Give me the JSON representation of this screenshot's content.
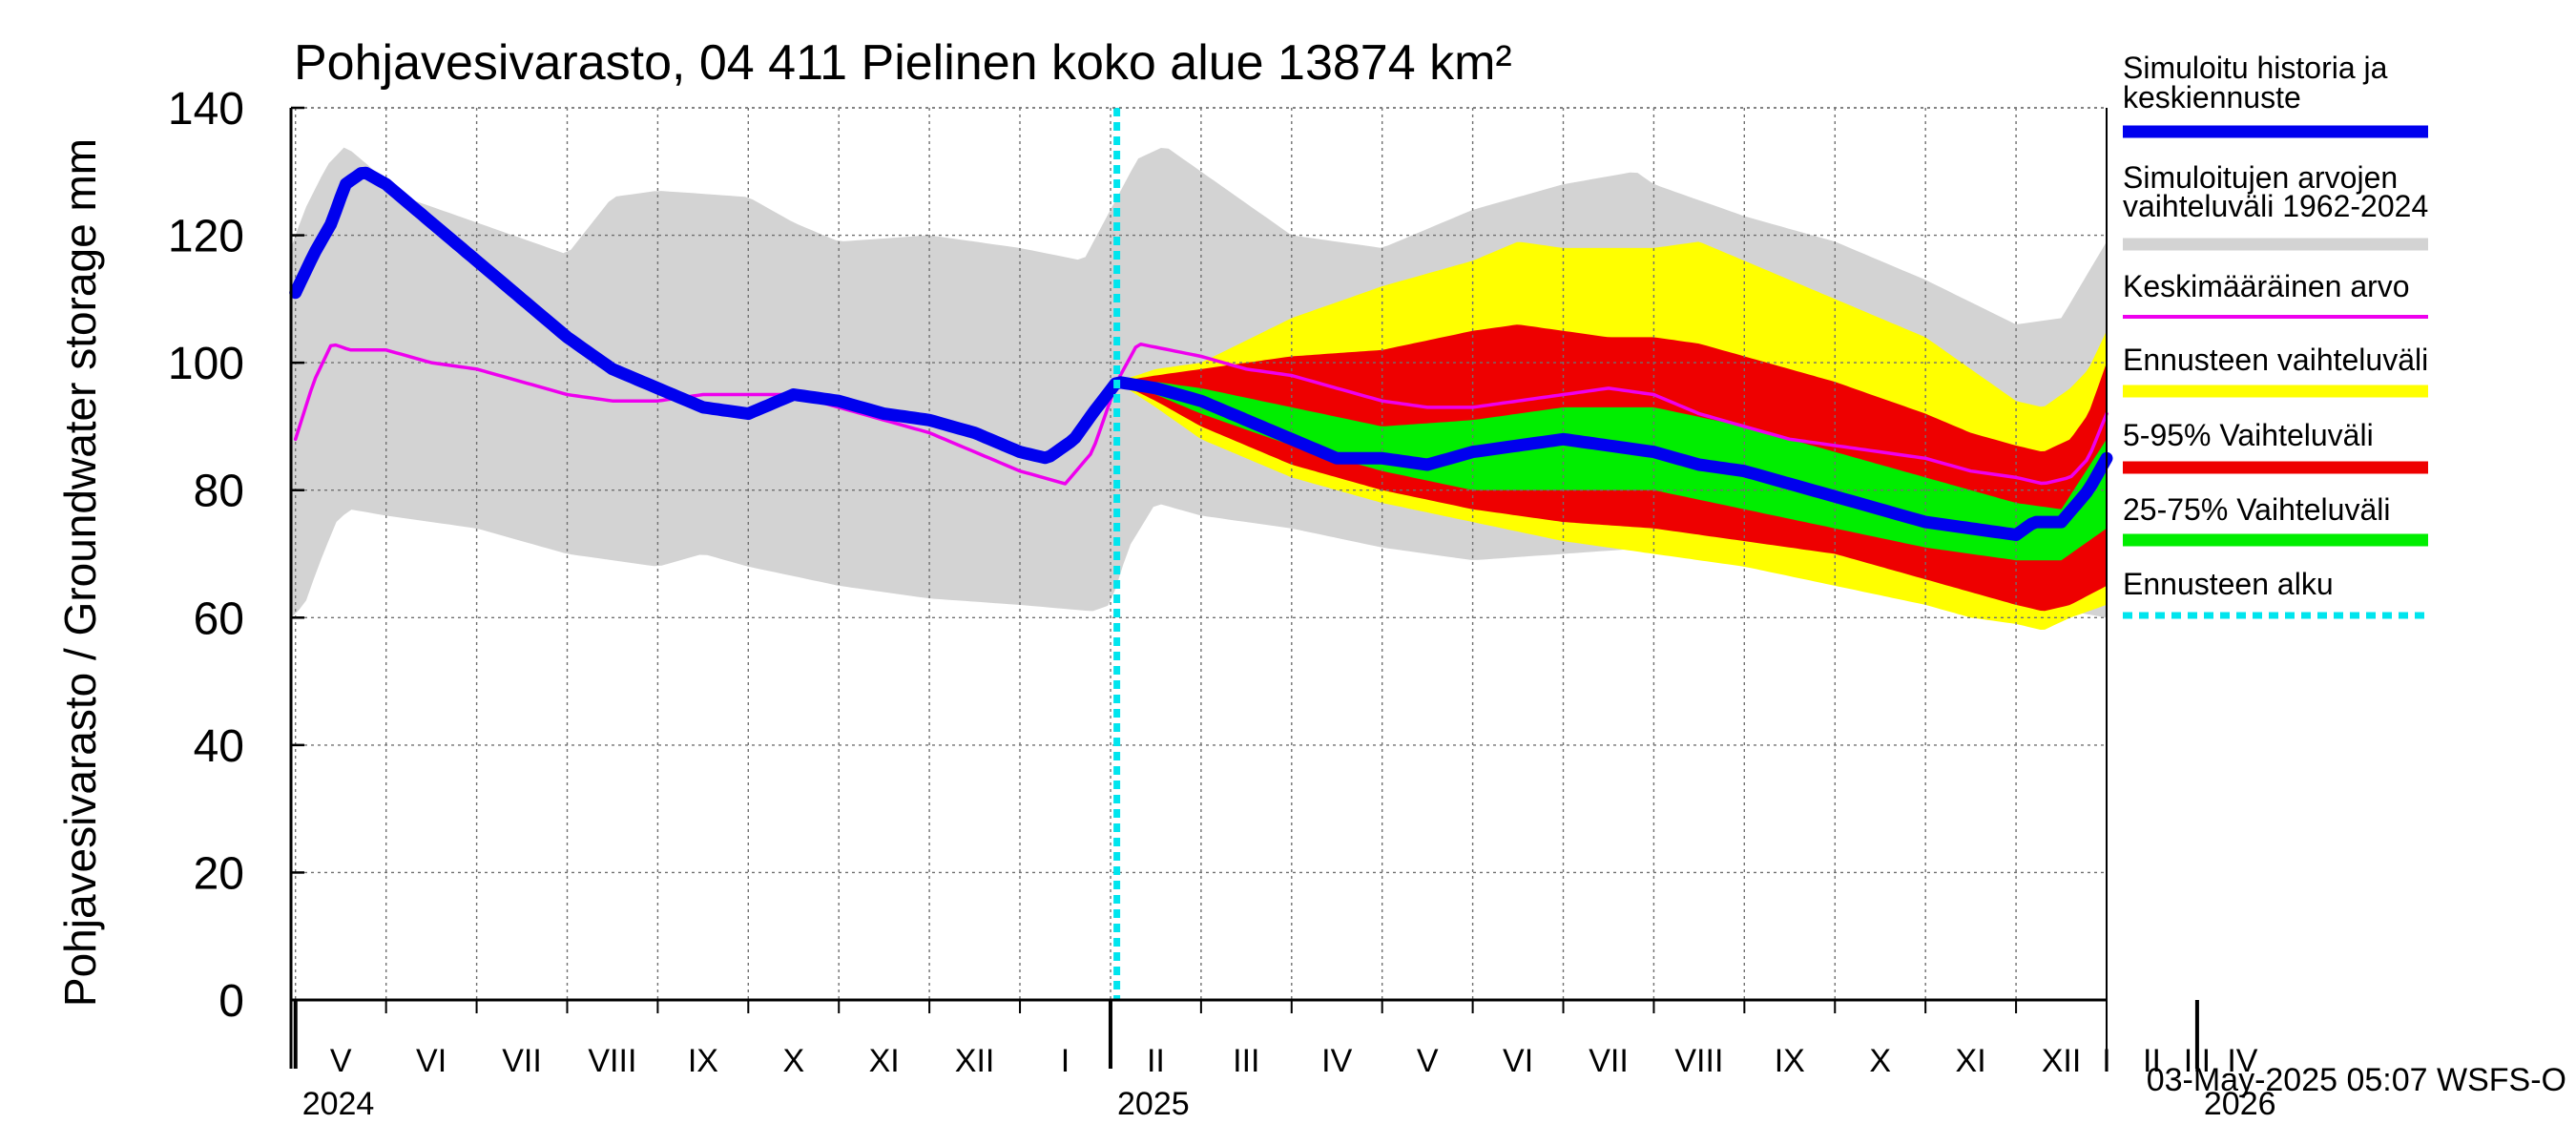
{
  "chart_data": {
    "type": "area",
    "title": "Pohjavesivarasto, 04 411 Pielinen koko alue 13874 km²",
    "ylabel": "Pohjavesivarasto / Groundwater storage   mm",
    "ylim": [
      0,
      140
    ],
    "yticks": [
      "0",
      "20",
      "40",
      "60",
      "80",
      "100",
      "120",
      "140"
    ],
    "ytick_values": [
      0,
      20,
      40,
      60,
      80,
      100,
      120,
      140
    ],
    "x_unit": "months since 2024-04-01",
    "xlim": [
      3.95,
      24.0
    ],
    "months": [
      "V",
      "VI",
      "VII",
      "VIII",
      "IX",
      "X",
      "XI",
      "XII",
      "I",
      "II",
      "III",
      "IV",
      "V",
      "VI",
      "VII",
      "VIII",
      "IX",
      "X",
      "XI",
      "XII",
      "I",
      "II",
      "III",
      "IV"
    ],
    "years": [
      {
        "label": "2024",
        "at": 0
      },
      {
        "label": "2025",
        "at": 9
      },
      {
        "label": "2026",
        "at": 21
      }
    ],
    "forecast_start": 13.07,
    "timestamp": "03-May-2025 05:07 WSFS-O",
    "legend": [
      {
        "label_lines": [
          "Simuloitu historia ja",
          "keskiennuste"
        ],
        "color": "#0000ee",
        "style": "line"
      },
      {
        "label_lines": [
          "Simuloitujen arvojen",
          "vaihteluväli 1962-2024"
        ],
        "color": "#d3d3d3",
        "style": "band"
      },
      {
        "label_lines": [
          "Keskimääräinen arvo"
        ],
        "color": "#ee00ee",
        "style": "line"
      },
      {
        "label_lines": [
          "Ennusteen vaihteluväli"
        ],
        "color": "#ffff00",
        "style": "band"
      },
      {
        "label_lines": [
          "5-95% Vaihteluväli"
        ],
        "color": "#ee0000",
        "style": "band"
      },
      {
        "label_lines": [
          "25-75% Vaihteluväli"
        ],
        "color": "#00ee00",
        "style": "band"
      },
      {
        "label_lines": [
          "Ennusteen alku"
        ],
        "color": "#00e5ee",
        "style": "dotted"
      }
    ],
    "series": [
      {
        "name": "Simuloitujen arvojen vaihteluväli 1962-2024 (upper)",
        "color": "#d3d3d3",
        "x": [
          3.95,
          4.1,
          4.35,
          4.55,
          4.8,
          5.2,
          6,
          7,
          7.5,
          8,
          9,
          9.5,
          10,
          11,
          12,
          12.7,
          13.0,
          13.3,
          13.6,
          14,
          15,
          16,
          17,
          18,
          18.8,
          19,
          20,
          21,
          22,
          23,
          23.5,
          24.0
        ],
        "values": [
          118,
          124,
          131,
          134,
          131,
          126,
          122,
          117,
          126,
          127,
          126,
          122,
          119,
          120,
          118,
          116,
          124,
          132,
          134,
          130,
          120,
          118,
          124,
          128,
          130,
          128,
          123,
          119,
          113,
          106,
          107,
          119
        ]
      },
      {
        "name": "Simuloitujen arvojen vaihteluväli 1962-2024 (lower)",
        "color": "#d3d3d3",
        "x": [
          3.95,
          4.1,
          4.25,
          4.45,
          4.6,
          5.0,
          6,
          7,
          8,
          8.5,
          9,
          10,
          11,
          12,
          12.8,
          13.0,
          13.2,
          13.5,
          14,
          15,
          16,
          17,
          18,
          19,
          20,
          21,
          22,
          23,
          23.6,
          24.0
        ],
        "values": [
          60,
          62,
          68,
          75,
          77,
          76,
          74,
          70,
          68,
          70,
          68,
          65,
          63,
          62,
          61,
          62,
          71,
          78,
          76,
          74,
          71,
          69,
          70,
          71,
          68,
          66,
          64,
          63,
          61,
          60
        ]
      },
      {
        "name": "Ennusteen vaihteluväli (upper)",
        "color": "#ffff00",
        "x": [
          13.07,
          13.5,
          14,
          15,
          16,
          17,
          17.5,
          18,
          19,
          19.5,
          20,
          21,
          22,
          22.5,
          23,
          23.3,
          23.6,
          23.8,
          24.0
        ],
        "values": [
          97,
          99,
          100,
          107,
          112,
          116,
          119,
          118,
          118,
          119,
          116,
          110,
          104,
          99,
          94,
          93,
          96,
          99,
          105
        ]
      },
      {
        "name": "Ennusteen vaihteluväli (lower)",
        "color": "#ffff00",
        "x": [
          13.07,
          13.5,
          14,
          15,
          16,
          17,
          18,
          19,
          20,
          21,
          22,
          22.5,
          23,
          23.3,
          23.6,
          24.0
        ],
        "values": [
          97,
          93,
          88,
          82,
          78,
          75,
          72,
          70,
          68,
          65,
          62,
          60,
          59,
          58,
          60,
          62
        ]
      },
      {
        "name": "5-95% Vaihteluväli (upper)",
        "color": "#ee0000",
        "x": [
          13.07,
          13.5,
          14,
          15,
          16,
          17,
          17.5,
          18,
          18.5,
          19,
          19.5,
          20,
          21,
          22,
          22.5,
          23,
          23.3,
          23.6,
          23.8,
          24.0
        ],
        "values": [
          97,
          98,
          99,
          101,
          102,
          105,
          106,
          105,
          104,
          104,
          103,
          101,
          97,
          92,
          89,
          87,
          86,
          88,
          92,
          100
        ]
      },
      {
        "name": "5-95% Vaihteluväli (lower)",
        "color": "#ee0000",
        "x": [
          13.07,
          13.5,
          14,
          15,
          16,
          17,
          18,
          19,
          20,
          21,
          22,
          22.5,
          23,
          23.3,
          23.6,
          24.0
        ],
        "values": [
          97,
          94,
          90,
          84,
          80,
          77,
          75,
          74,
          72,
          70,
          66,
          64,
          62,
          61,
          62,
          65
        ]
      },
      {
        "name": "25-75% Vaihteluväli (upper)",
        "color": "#00ee00",
        "x": [
          13.07,
          13.5,
          14,
          15,
          16,
          17,
          17.5,
          18,
          18.5,
          19,
          20,
          21,
          22,
          23,
          23.5,
          24.0
        ],
        "values": [
          97,
          97,
          96,
          93,
          90,
          91,
          92,
          93,
          93,
          93,
          90,
          86,
          82,
          78,
          77,
          88
        ]
      },
      {
        "name": "25-75% Vaihteluväli (lower)",
        "color": "#00ee00",
        "x": [
          13.07,
          13.5,
          14,
          15,
          16,
          17,
          18,
          19,
          20,
          21,
          22,
          23,
          23.5,
          24.0
        ],
        "values": [
          97,
          95,
          92,
          87,
          83,
          80,
          80,
          80,
          77,
          74,
          71,
          69,
          69,
          74
        ]
      },
      {
        "name": "Keskimääräinen arvo",
        "color": "#ee00ee",
        "x": [
          4.0,
          4.2,
          4.4,
          4.6,
          5.0,
          5.5,
          6.0,
          6.5,
          7.0,
          7.5,
          8.0,
          8.5,
          9.0,
          9.5,
          10.0,
          10.5,
          11.0,
          11.5,
          12.0,
          12.5,
          12.8,
          13.07,
          13.3,
          14.0,
          14.5,
          15.0,
          15.5,
          16.0,
          16.5,
          17.0,
          17.5,
          18.0,
          18.5,
          19.0,
          19.5,
          20.0,
          20.5,
          21.0,
          21.5,
          22.0,
          22.5,
          23.0,
          23.3,
          23.6,
          23.8,
          24.0
        ],
        "values": [
          88,
          97,
          103,
          102,
          102,
          100,
          99,
          97,
          95,
          94,
          94,
          95,
          95,
          95,
          93,
          91,
          89,
          86,
          83,
          81,
          86,
          97,
          103,
          101,
          99,
          98,
          96,
          94,
          93,
          93,
          94,
          95,
          96,
          95,
          92,
          90,
          88,
          87,
          86,
          85,
          83,
          82,
          81,
          82,
          85,
          92
        ]
      },
      {
        "name": "Simuloitu historia ja keskiennuste",
        "color": "#0000ee",
        "x": [
          4.0,
          4.2,
          4.4,
          4.55,
          4.75,
          5.0,
          5.5,
          6.0,
          6.5,
          7.0,
          7.5,
          8.0,
          8.5,
          9.0,
          9.5,
          10.0,
          10.5,
          11.0,
          11.5,
          12.0,
          12.3,
          12.6,
          12.8,
          13.07,
          13.5,
          14.0,
          14.5,
          15.0,
          15.5,
          16.0,
          16.5,
          17.0,
          17.5,
          18.0,
          18.5,
          19.0,
          19.5,
          20.0,
          20.5,
          21.0,
          21.5,
          22.0,
          22.5,
          23.0,
          23.2,
          23.5,
          23.8,
          24.0
        ],
        "values": [
          111,
          117,
          122,
          128,
          130,
          128,
          122,
          116,
          110,
          104,
          99,
          96,
          93,
          92,
          95,
          94,
          92,
          91,
          89,
          86,
          85,
          88,
          92,
          97,
          96,
          94,
          91,
          88,
          85,
          85,
          84,
          86,
          87,
          88,
          87,
          86,
          84,
          83,
          81,
          79,
          77,
          75,
          74,
          73,
          75,
          75,
          80,
          85
        ]
      }
    ]
  }
}
